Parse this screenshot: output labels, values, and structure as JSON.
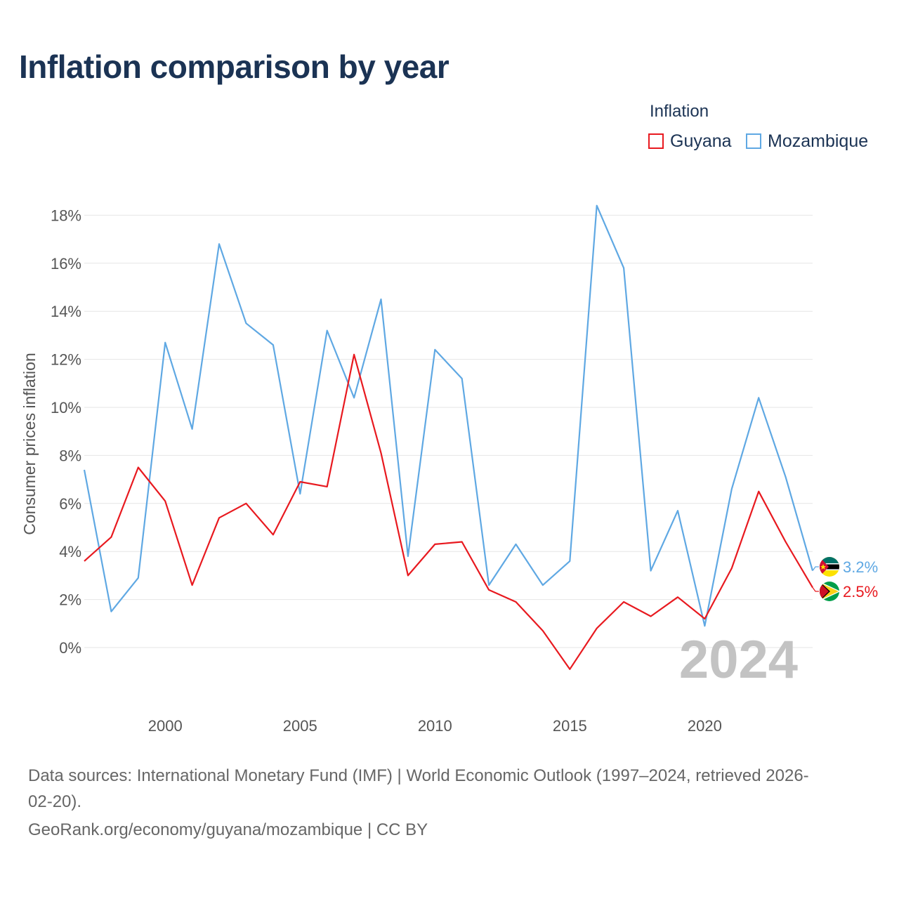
{
  "chart_data": {
    "type": "line",
    "title": "Inflation comparison by year",
    "legend_title": "Inflation",
    "ylabel": "Consumer prices inflation",
    "xlabel": "",
    "x": [
      1997,
      1998,
      1999,
      2000,
      2001,
      2002,
      2003,
      2004,
      2005,
      2006,
      2007,
      2008,
      2009,
      2010,
      2011,
      2012,
      2013,
      2014,
      2015,
      2016,
      2017,
      2018,
      2019,
      2020,
      2021,
      2022,
      2023,
      2024
    ],
    "xlim": [
      1997,
      2024
    ],
    "ylim": [
      -2,
      18.4
    ],
    "x_ticks": [
      {
        "value": 2000,
        "label": "2000"
      },
      {
        "value": 2005,
        "label": "2005"
      },
      {
        "value": 2010,
        "label": "2010"
      },
      {
        "value": 2015,
        "label": "2015"
      },
      {
        "value": 2020,
        "label": "2020"
      }
    ],
    "y_ticks": [
      {
        "value": 0,
        "label": "0%"
      },
      {
        "value": 2,
        "label": "2%"
      },
      {
        "value": 4,
        "label": "4%"
      },
      {
        "value": 6,
        "label": "6%"
      },
      {
        "value": 8,
        "label": "8%"
      },
      {
        "value": 10,
        "label": "10%"
      },
      {
        "value": 12,
        "label": "12%"
      },
      {
        "value": 14,
        "label": "14%"
      },
      {
        "value": 16,
        "label": "16%"
      },
      {
        "value": 18,
        "label": "18%"
      }
    ],
    "grid": true,
    "year_watermark": "2024",
    "series": [
      {
        "name": "Guyana",
        "color": "#e8191f",
        "end_label": "2.5%",
        "flag_icon": "guyana-flag-icon",
        "values": [
          3.6,
          4.6,
          7.5,
          6.1,
          2.6,
          5.4,
          6.0,
          4.7,
          6.9,
          6.7,
          12.2,
          8.1,
          3.0,
          4.3,
          4.4,
          2.4,
          1.9,
          0.7,
          -0.9,
          0.8,
          1.9,
          1.3,
          2.1,
          1.2,
          3.3,
          6.5,
          4.4,
          2.5
        ]
      },
      {
        "name": "Mozambique",
        "color": "#5fa8e3",
        "end_label": "3.2%",
        "flag_icon": "mozambique-flag-icon",
        "values": [
          7.4,
          1.5,
          2.9,
          12.7,
          9.1,
          16.8,
          13.5,
          12.6,
          6.4,
          13.2,
          10.4,
          14.5,
          3.8,
          12.4,
          11.2,
          2.6,
          4.3,
          2.6,
          3.6,
          18.4,
          15.8,
          3.2,
          5.7,
          0.9,
          6.6,
          10.4,
          7.1,
          3.2
        ]
      }
    ]
  },
  "footer": {
    "source_line_1": "Data sources: International Monetary Fund (IMF) | World Economic Outlook (1997–2024, retrieved 2026-",
    "source_line_2": "02-20).",
    "attribution": "GeoRank.org/economy/guyana/mozambique | CC BY"
  }
}
